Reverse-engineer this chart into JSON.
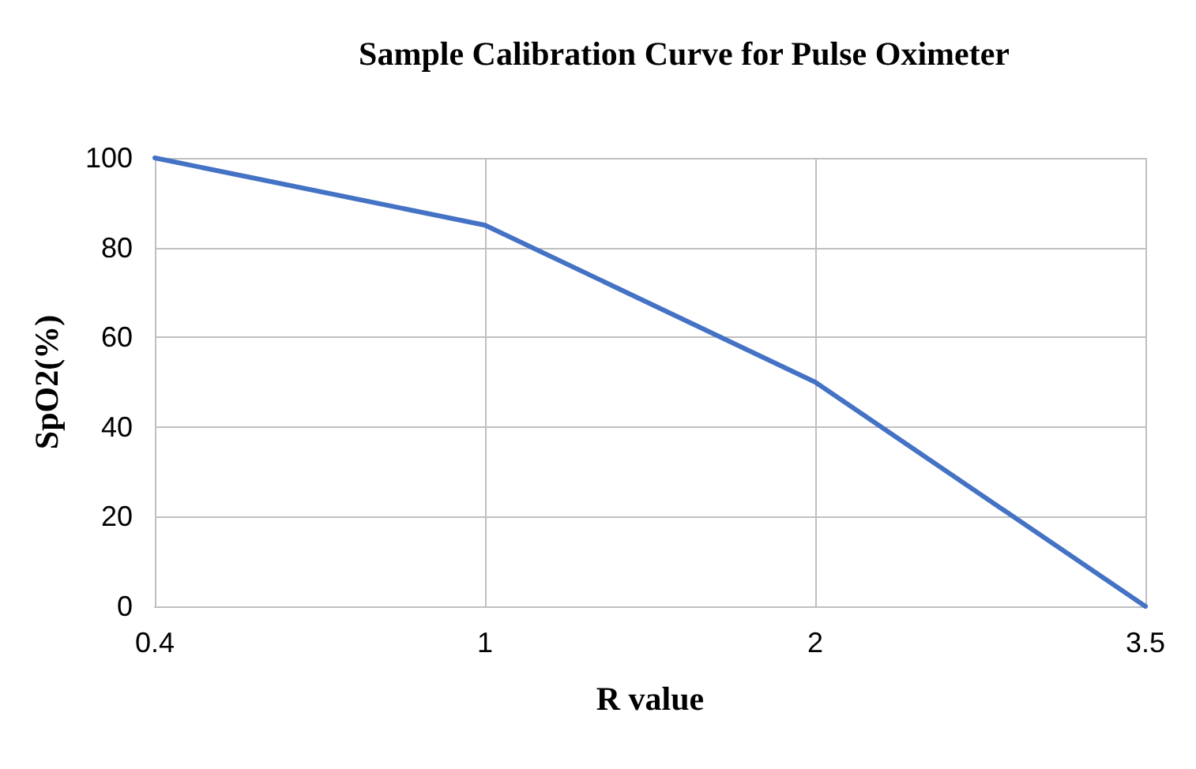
{
  "chart_data": {
    "type": "line",
    "title": "Sample Calibration Curve for Pulse Oximeter",
    "xlabel": "R value",
    "ylabel": "SpO2(%)",
    "categories": [
      "0.4",
      "1",
      "2",
      "3.5"
    ],
    "series": [
      {
        "color": "#4472c4",
        "values": [
          100,
          85,
          50,
          0
        ]
      }
    ],
    "ylim": [
      0,
      100
    ],
    "yticks": [
      0,
      20,
      40,
      60,
      80,
      100
    ],
    "grid": true,
    "marker": "none",
    "line_style": "solid"
  }
}
